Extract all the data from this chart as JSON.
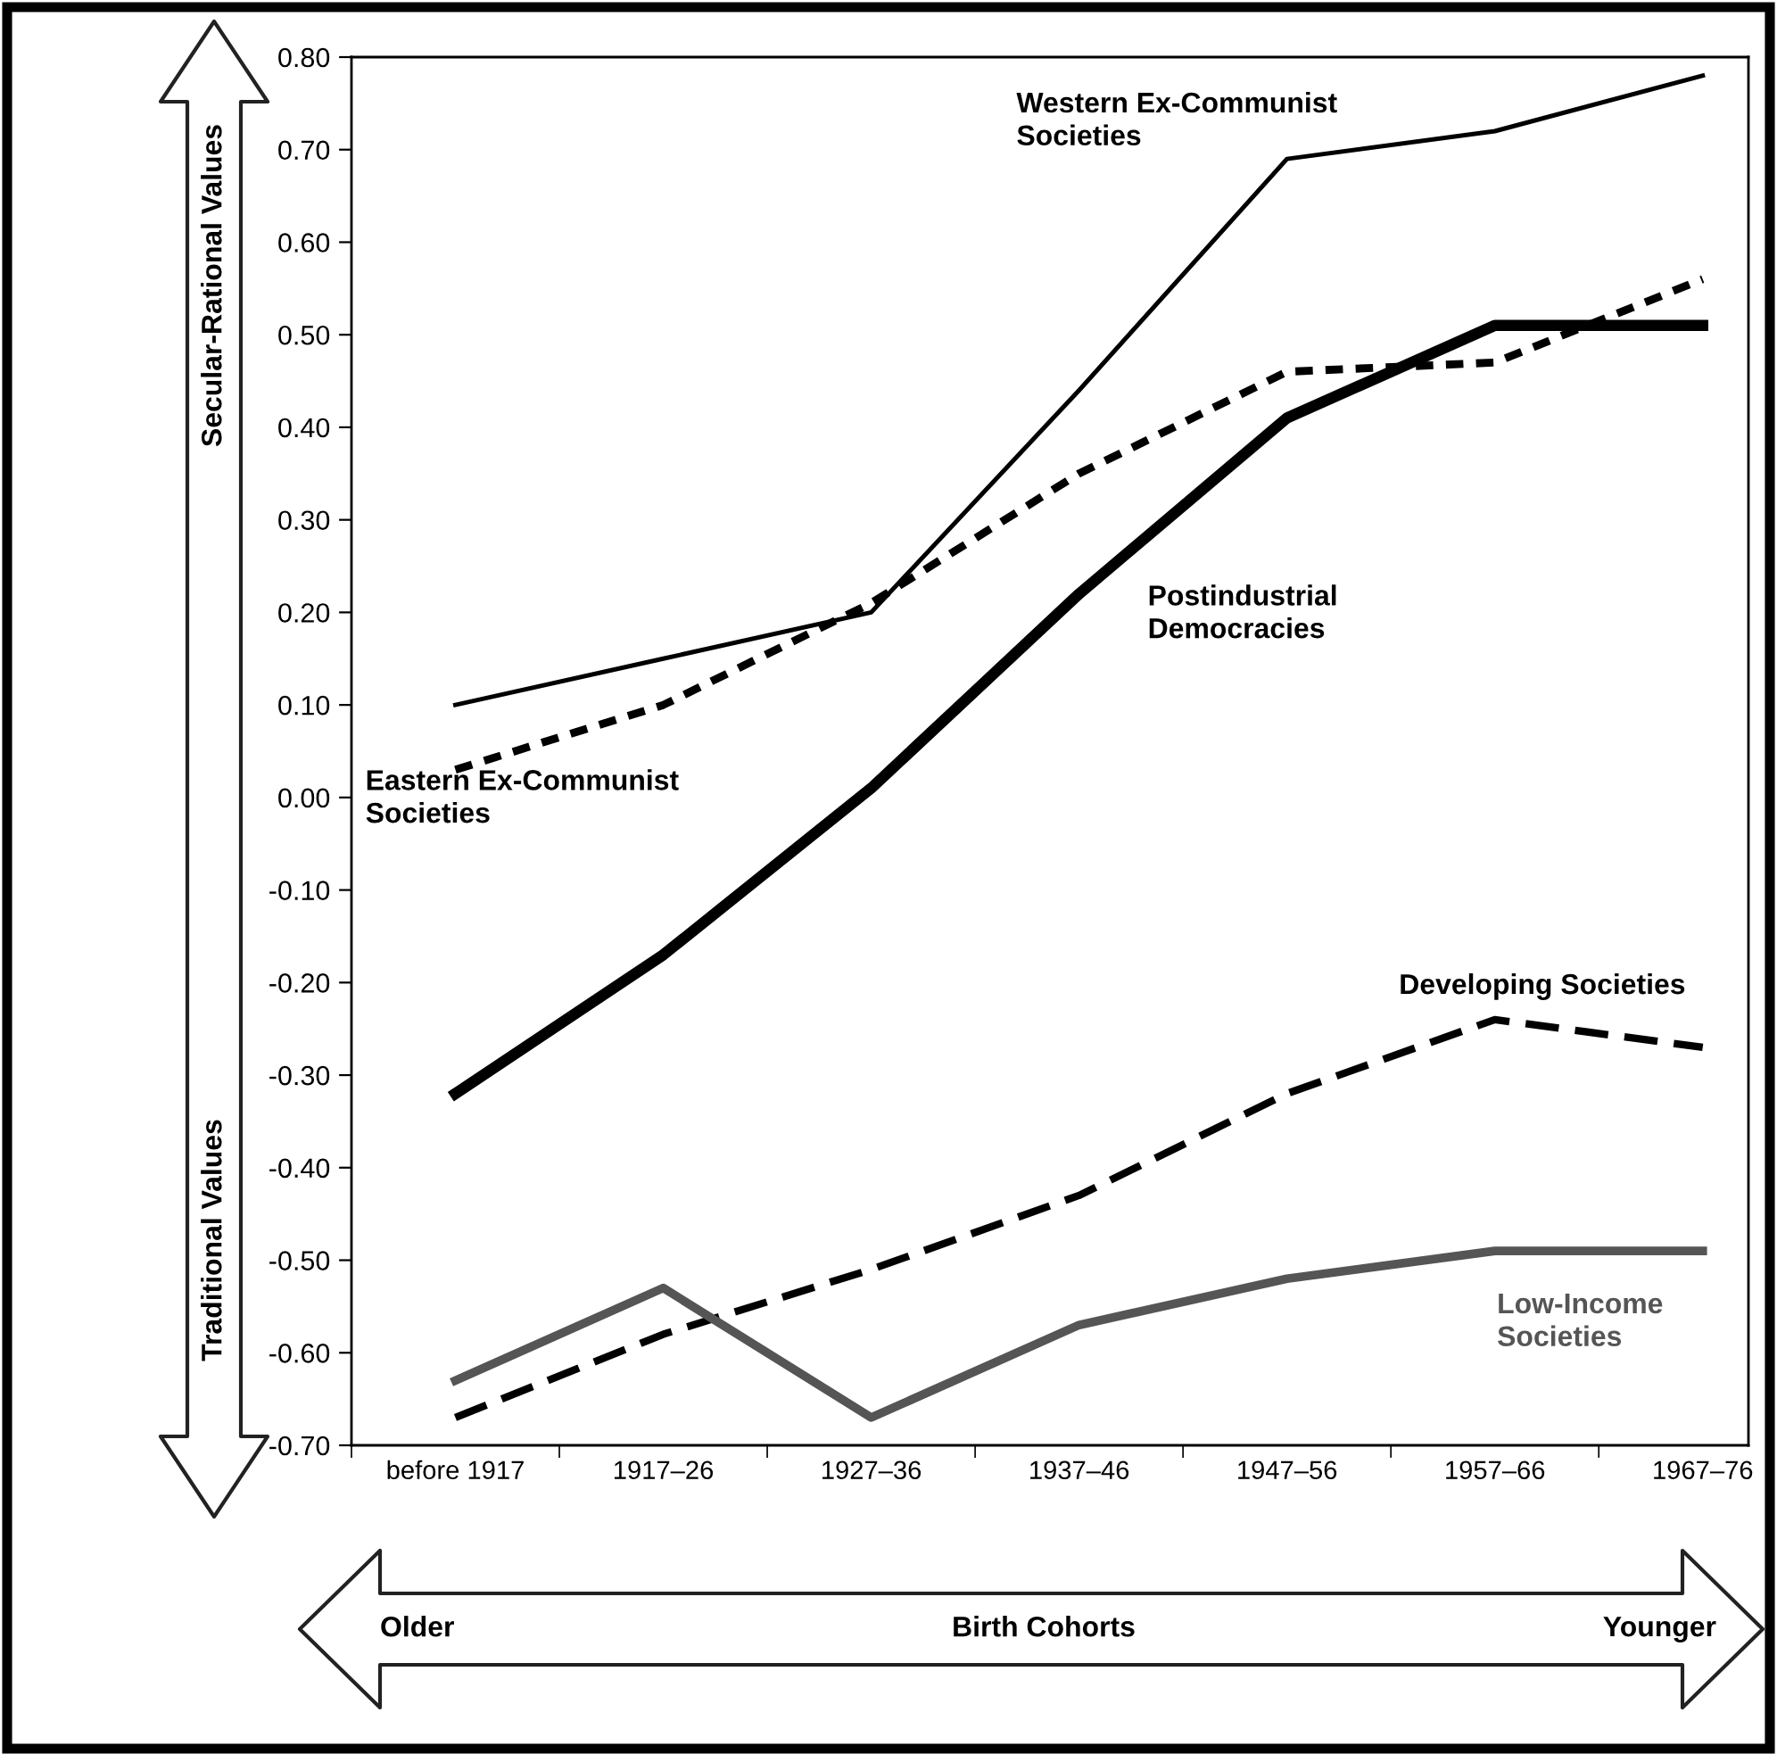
{
  "chart_data": {
    "type": "line",
    "categories": [
      "before 1917",
      "1917–26",
      "1927–36",
      "1937–46",
      "1947–56",
      "1957–66",
      "1967–76"
    ],
    "series": [
      {
        "name": "Western Ex-Communist Societies",
        "color": "#000000",
        "line_style": "solid",
        "values": [
          0.1,
          0.15,
          0.2,
          0.44,
          0.69,
          0.72,
          0.78
        ]
      },
      {
        "name": "Eastern Ex-Communist Societies",
        "color": "#000000",
        "line_style": "dashed",
        "values": [
          0.03,
          0.1,
          0.21,
          0.35,
          0.46,
          0.47,
          0.56
        ]
      },
      {
        "name": "Postindustrial Democracies",
        "color": "#000000",
        "line_style": "solid",
        "values": [
          -0.32,
          -0.17,
          0.01,
          0.22,
          0.41,
          0.51,
          0.51
        ]
      },
      {
        "name": "Developing Societies",
        "color": "#000000",
        "line_style": "dashed",
        "values": [
          -0.67,
          -0.58,
          -0.51,
          -0.43,
          -0.32,
          -0.24,
          -0.27
        ]
      },
      {
        "name": "Low-Income Societies",
        "color": "#555555",
        "line_style": "solid",
        "values": [
          -0.63,
          -0.53,
          -0.67,
          -0.57,
          -0.52,
          -0.49,
          -0.49
        ]
      }
    ],
    "ylim": [
      -0.7,
      0.8
    ],
    "yticks": [
      {
        "value": -0.7,
        "label": "-0.70"
      },
      {
        "value": -0.6,
        "label": "-0.60"
      },
      {
        "value": -0.5,
        "label": "-0.50"
      },
      {
        "value": -0.4,
        "label": "-0.40"
      },
      {
        "value": -0.3,
        "label": "-0.30"
      },
      {
        "value": -0.2,
        "label": "-0.20"
      },
      {
        "value": -0.1,
        "label": "-0.10"
      },
      {
        "value": 0,
        "label": "0.00"
      },
      {
        "value": 0.1,
        "label": "0.10"
      },
      {
        "value": 0.2,
        "label": "0.20"
      },
      {
        "value": 0.3,
        "label": "0.30"
      },
      {
        "value": 0.4,
        "label": "0.40"
      },
      {
        "value": 0.5,
        "label": "0.50"
      },
      {
        "value": 0.6,
        "label": "0.60"
      },
      {
        "value": 0.7,
        "label": "0.70"
      },
      {
        "value": 0.8,
        "label": "0.80"
      }
    ],
    "annotations": [
      "Secular-Rational Values",
      "Traditional Values",
      "Older",
      "Younger",
      "Birth Cohorts"
    ],
    "grid": false,
    "legend": false,
    "marker": "none"
  }
}
